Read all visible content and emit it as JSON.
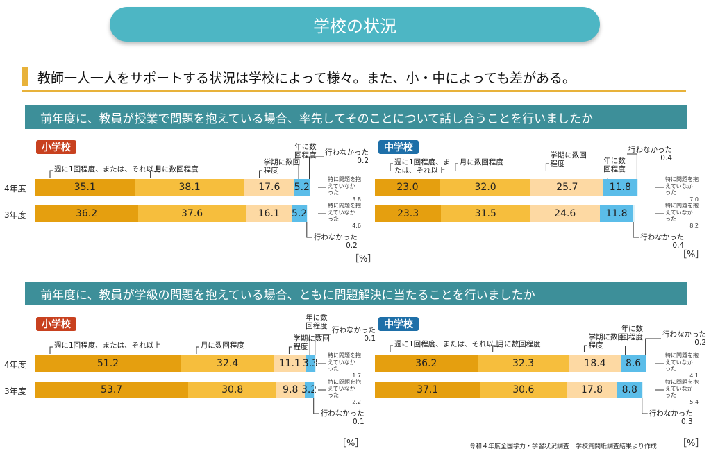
{
  "title": "学校の状況",
  "lead": "教師一人一人をサポートする状況は学校によって様々。また、小・中によっても差がある。",
  "unit": "［%］",
  "source": "令和４年度全国学力・学習状況調査　学校質問紙調査結果より作成",
  "colors": [
    "#e59f0f",
    "#f6be3d",
    "#fdd9a3",
    "#5bbde9",
    "#dff2f8"
  ],
  "chart_data": [
    {
      "type": "bar",
      "stacked": true,
      "orientation": "horizontal",
      "title": "前年度に、教員が授業で問題を抱えている場合、率先してそのことについて話し合うことを行いましたか",
      "group": "小学校",
      "categories": [
        "4年度",
        "3年度"
      ],
      "labels": {
        "weekly": "週に1回程度、または、それ以上",
        "monthly": "月に数回程度",
        "term": "学期に数回程度",
        "yearly": "年に数回程度",
        "none": "行わなかった",
        "noproblem": "特に問題を抱えていなかった"
      },
      "series": [
        {
          "name": "週に1回程度、または、それ以上",
          "values": [
            35.1,
            36.2
          ]
        },
        {
          "name": "月に数回程度",
          "values": [
            38.1,
            37.6
          ]
        },
        {
          "name": "学期に数回程度",
          "values": [
            17.6,
            16.1
          ]
        },
        {
          "name": "年に数回程度",
          "values": [
            5.2,
            5.2
          ]
        },
        {
          "name": "行わなかった",
          "values": [
            0.2,
            0.2
          ]
        },
        {
          "name": "特に問題を抱えていなかった",
          "values": [
            3.8,
            4.6
          ]
        }
      ]
    },
    {
      "type": "bar",
      "stacked": true,
      "orientation": "horizontal",
      "title": "前年度に、教員が授業で問題を抱えている場合、率先してそのことについて話し合うことを行いましたか",
      "group": "中学校",
      "categories": [
        "4年度",
        "3年度"
      ],
      "labels": {
        "weekly": "週に1回程度、または、それ以上",
        "monthly": "月に数回程度",
        "term": "学期に数回程度",
        "yearly": "年に数回程度",
        "none": "行わなかった",
        "noproblem": "特に問題を抱えていなかった"
      },
      "series": [
        {
          "name": "週に1回程度、または、それ以上",
          "values": [
            23.0,
            23.3
          ]
        },
        {
          "name": "月に数回程度",
          "values": [
            32.0,
            31.5
          ]
        },
        {
          "name": "学期に数回程度",
          "values": [
            25.7,
            24.6
          ]
        },
        {
          "name": "年に数回程度",
          "values": [
            11.8,
            11.8
          ]
        },
        {
          "name": "行わなかった",
          "values": [
            0.4,
            0.4
          ]
        },
        {
          "name": "特に問題を抱えていなかった",
          "values": [
            7.0,
            8.2
          ]
        }
      ]
    },
    {
      "type": "bar",
      "stacked": true,
      "orientation": "horizontal",
      "title": "前年度に、教員が学級の問題を抱えている場合、ともに問題解決に当たることを行いましたか",
      "group": "小学校",
      "categories": [
        "4年度",
        "3年度"
      ],
      "labels": {
        "weekly": "週に1回程度、または、それ以上",
        "monthly": "月に数回程度",
        "term": "学期に数回程度",
        "yearly": "年に数回程度",
        "none": "行わなかった",
        "noproblem": "特に問題を抱えていなかった"
      },
      "series": [
        {
          "name": "週に1回程度、または、それ以上",
          "values": [
            51.2,
            53.7
          ]
        },
        {
          "name": "月に数回程度",
          "values": [
            32.4,
            30.8
          ]
        },
        {
          "name": "学期に数回程度",
          "values": [
            11.1,
            9.8
          ]
        },
        {
          "name": "年に数回程度",
          "values": [
            3.3,
            3.2
          ]
        },
        {
          "name": "行わなかった",
          "values": [
            0.1,
            0.1
          ]
        },
        {
          "name": "特に問題を抱えていなかった",
          "values": [
            1.7,
            2.2
          ]
        }
      ]
    },
    {
      "type": "bar",
      "stacked": true,
      "orientation": "horizontal",
      "title": "前年度に、教員が学級の問題を抱えている場合、ともに問題解決に当たることを行いましたか",
      "group": "中学校",
      "categories": [
        "4年度",
        "3年度"
      ],
      "labels": {
        "weekly": "週に1回程度、または、それ以上",
        "monthly": "月に数回程度",
        "term": "学期に数回程度",
        "yearly": "年に数回程度",
        "none": "行わなかった",
        "noproblem": "特に問題を抱えていなかった"
      },
      "series": [
        {
          "name": "週に1回程度、または、それ以上",
          "values": [
            36.2,
            37.1
          ]
        },
        {
          "name": "月に数回程度",
          "values": [
            32.3,
            30.6
          ]
        },
        {
          "name": "学期に数回程度",
          "values": [
            18.4,
            17.8
          ]
        },
        {
          "name": "年に数回程度",
          "values": [
            8.6,
            8.8
          ]
        },
        {
          "name": "行わなかった",
          "values": [
            0.2,
            0.3
          ]
        },
        {
          "name": "特に問題を抱えていなかった",
          "values": [
            4.1,
            5.4
          ]
        }
      ]
    }
  ]
}
